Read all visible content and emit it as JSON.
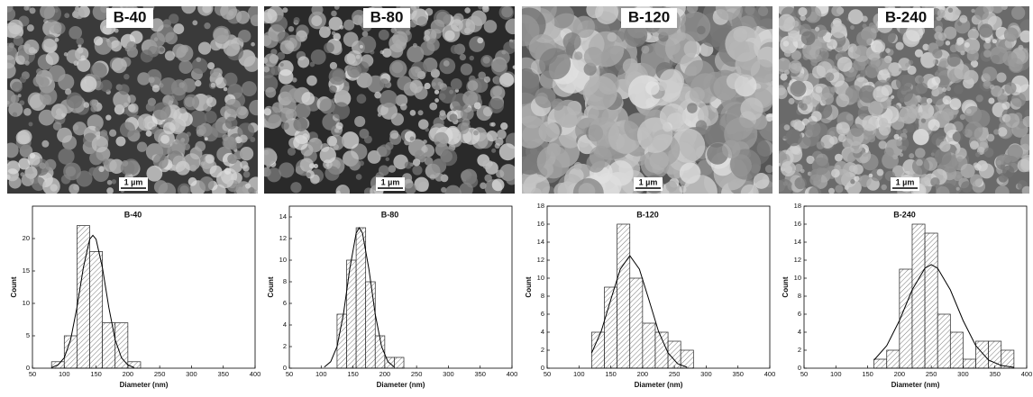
{
  "images": [
    {
      "label": "B-40",
      "scale": "1 µm"
    },
    {
      "label": "B-80",
      "scale": "1 µm"
    },
    {
      "label": "B-120",
      "scale": "1 µm"
    },
    {
      "label": "B-240",
      "scale": "1 µm"
    }
  ],
  "chart_data": [
    {
      "type": "histogram",
      "title": "B-40",
      "x_label": "Diameter (nm)",
      "y_label": "Count",
      "bins": [
        80,
        100,
        120,
        140,
        160,
        180,
        200,
        220
      ],
      "values": [
        1,
        5,
        22,
        18,
        7,
        7,
        1
      ],
      "fit": {
        "x": [
          80,
          90,
          100,
          110,
          120,
          130,
          140,
          145,
          150,
          160,
          170,
          180,
          190,
          200,
          210
        ],
        "values": [
          0.1,
          0.5,
          1.6,
          4.4,
          9.4,
          15.5,
          19.9,
          20.5,
          19.9,
          15.5,
          9.4,
          4.4,
          1.6,
          0.5,
          0.1
        ]
      },
      "xlim": [
        50,
        400
      ],
      "xticks": [
        50,
        100,
        150,
        200,
        250,
        300,
        350,
        400
      ],
      "ylim": [
        0,
        25
      ],
      "yticks": [
        0,
        5,
        10,
        15,
        20
      ]
    },
    {
      "type": "histogram",
      "title": "B-80",
      "x_label": "Diameter (nm)",
      "y_label": "Count",
      "bins": [
        125,
        140,
        155,
        170,
        185,
        200,
        215,
        230
      ],
      "values": [
        5,
        10,
        13,
        8,
        3,
        1,
        1
      ],
      "fit": {
        "x": [
          105,
          115,
          125,
          135,
          145,
          155,
          160,
          165,
          175,
          185,
          195,
          205,
          215
        ],
        "values": [
          0.1,
          0.6,
          2.0,
          5.0,
          9.2,
          12.5,
          13,
          12.5,
          9.2,
          5.0,
          2.0,
          0.6,
          0.1
        ]
      },
      "xlim": [
        50,
        400
      ],
      "xticks": [
        50,
        100,
        150,
        200,
        250,
        300,
        350,
        400
      ],
      "ylim": [
        0,
        15
      ],
      "yticks": [
        0,
        2,
        4,
        6,
        8,
        10,
        12,
        14
      ]
    },
    {
      "type": "histogram",
      "title": "B-120",
      "x_label": "Diameter (nm)",
      "y_label": "Count",
      "bins": [
        120,
        140,
        160,
        180,
        200,
        220,
        240,
        260,
        280
      ],
      "values": [
        4,
        9,
        16,
        10,
        5,
        4,
        3,
        2
      ],
      "fit": {
        "x": [
          120,
          135,
          150,
          165,
          180,
          195,
          210,
          225,
          240,
          255,
          270
        ],
        "values": [
          1.7,
          4.1,
          7.6,
          11.0,
          12.5,
          11.0,
          7.6,
          4.1,
          1.7,
          0.5,
          0.1
        ]
      },
      "xlim": [
        50,
        400
      ],
      "xticks": [
        50,
        100,
        150,
        200,
        250,
        300,
        350,
        400
      ],
      "ylim": [
        0,
        18
      ],
      "yticks": [
        0,
        2,
        4,
        6,
        8,
        10,
        12,
        14,
        16,
        18
      ]
    },
    {
      "type": "histogram",
      "title": "B-240",
      "x_label": "Diameter (nm)",
      "y_label": "Count",
      "bins": [
        160,
        180,
        200,
        220,
        240,
        260,
        280,
        300,
        320,
        340,
        360,
        380
      ],
      "values": [
        1,
        2,
        11,
        16,
        15,
        6,
        4,
        1,
        3,
        3,
        2
      ],
      "fit": {
        "x": [
          160,
          180,
          200,
          220,
          240,
          250,
          260,
          280,
          300,
          320,
          340,
          360,
          380
        ],
        "values": [
          0.9,
          2.5,
          5.3,
          8.7,
          11.1,
          11.5,
          11.1,
          8.7,
          5.3,
          2.5,
          0.9,
          0.3,
          0.1
        ]
      },
      "xlim": [
        50,
        400
      ],
      "xticks": [
        50,
        100,
        150,
        200,
        250,
        300,
        350,
        400
      ],
      "ylim": [
        0,
        18
      ],
      "yticks": [
        0,
        2,
        4,
        6,
        8,
        10,
        12,
        14,
        16,
        18
      ]
    }
  ]
}
